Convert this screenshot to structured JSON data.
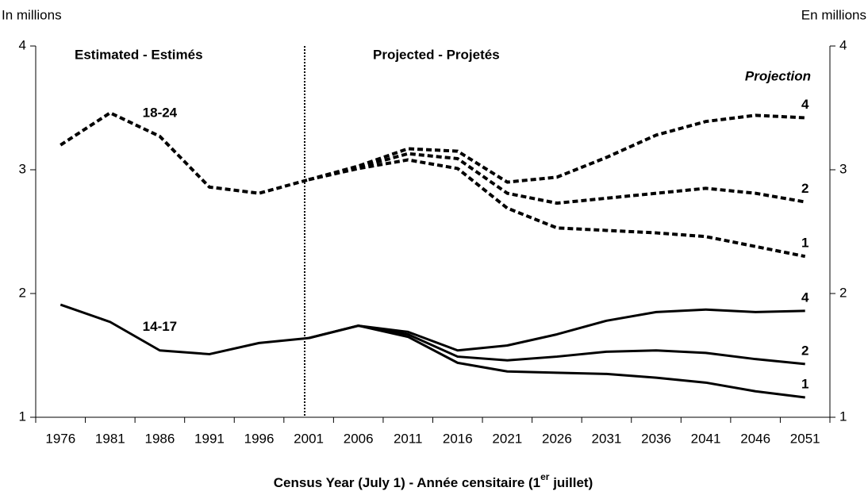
{
  "chart_data": {
    "type": "line",
    "ylabel": "In millions",
    "y2label": "En millions",
    "region_labels": [
      "Estimated - Estimés",
      "Projected - Projetés"
    ],
    "projection_label": "Projection",
    "xlabel": {
      "text": "Census Year (July 1) - Année censitaire (1",
      "sup": "er",
      "tail": " juillet)"
    },
    "categories": [
      "1976",
      "1981",
      "1986",
      "1991",
      "1996",
      "2001",
      "2006",
      "2011",
      "2016",
      "2021",
      "2026",
      "2031",
      "2036",
      "2041",
      "2046",
      "2051"
    ],
    "ylim": [
      1,
      4
    ],
    "yticks": [
      1,
      2,
      3,
      4
    ],
    "y2lim": [
      1,
      4
    ],
    "y2ticks": [
      1,
      2,
      3,
      4
    ],
    "series": [
      {
        "name": "18-24",
        "style": "dashed",
        "color": "#000000",
        "values": [
          3.2,
          3.46,
          3.27,
          2.86,
          2.81,
          2.92,
          null,
          null,
          null,
          null,
          null,
          null,
          null,
          null,
          null,
          null
        ]
      },
      {
        "name": "4",
        "style": "dashed",
        "color": "#000000",
        "values": [
          null,
          null,
          null,
          null,
          null,
          2.92,
          3.03,
          3.17,
          3.15,
          2.9,
          2.94,
          3.1,
          3.28,
          3.39,
          3.44,
          3.42
        ]
      },
      {
        "name": "2",
        "style": "dashed",
        "color": "#000000",
        "values": [
          null,
          null,
          null,
          null,
          null,
          2.92,
          3.02,
          3.13,
          3.09,
          2.81,
          2.73,
          2.77,
          2.81,
          2.85,
          2.81,
          2.74
        ]
      },
      {
        "name": "1",
        "style": "dashed",
        "color": "#000000",
        "values": [
          null,
          null,
          null,
          null,
          null,
          2.92,
          3.01,
          3.08,
          3.01,
          2.69,
          2.53,
          2.51,
          2.49,
          2.46,
          2.38,
          2.3
        ]
      },
      {
        "name": "14-17",
        "style": "solid",
        "color": "#000000",
        "values": [
          1.91,
          1.77,
          1.54,
          1.51,
          1.6,
          1.64,
          null,
          null,
          null,
          null,
          null,
          null,
          null,
          null,
          null,
          null
        ]
      },
      {
        "name": "4",
        "style": "solid",
        "color": "#000000",
        "values": [
          null,
          null,
          null,
          null,
          null,
          1.64,
          1.74,
          1.69,
          1.54,
          1.58,
          1.67,
          1.78,
          1.85,
          1.87,
          1.85,
          1.86
        ]
      },
      {
        "name": "2",
        "style": "solid",
        "color": "#000000",
        "values": [
          null,
          null,
          null,
          null,
          null,
          1.64,
          1.74,
          1.67,
          1.49,
          1.46,
          1.49,
          1.53,
          1.54,
          1.52,
          1.47,
          1.43
        ]
      },
      {
        "name": "1",
        "style": "solid",
        "color": "#000000",
        "values": [
          null,
          null,
          null,
          null,
          null,
          1.64,
          1.74,
          1.65,
          1.44,
          1.37,
          1.36,
          1.35,
          1.32,
          1.28,
          1.21,
          1.16
        ]
      }
    ]
  }
}
